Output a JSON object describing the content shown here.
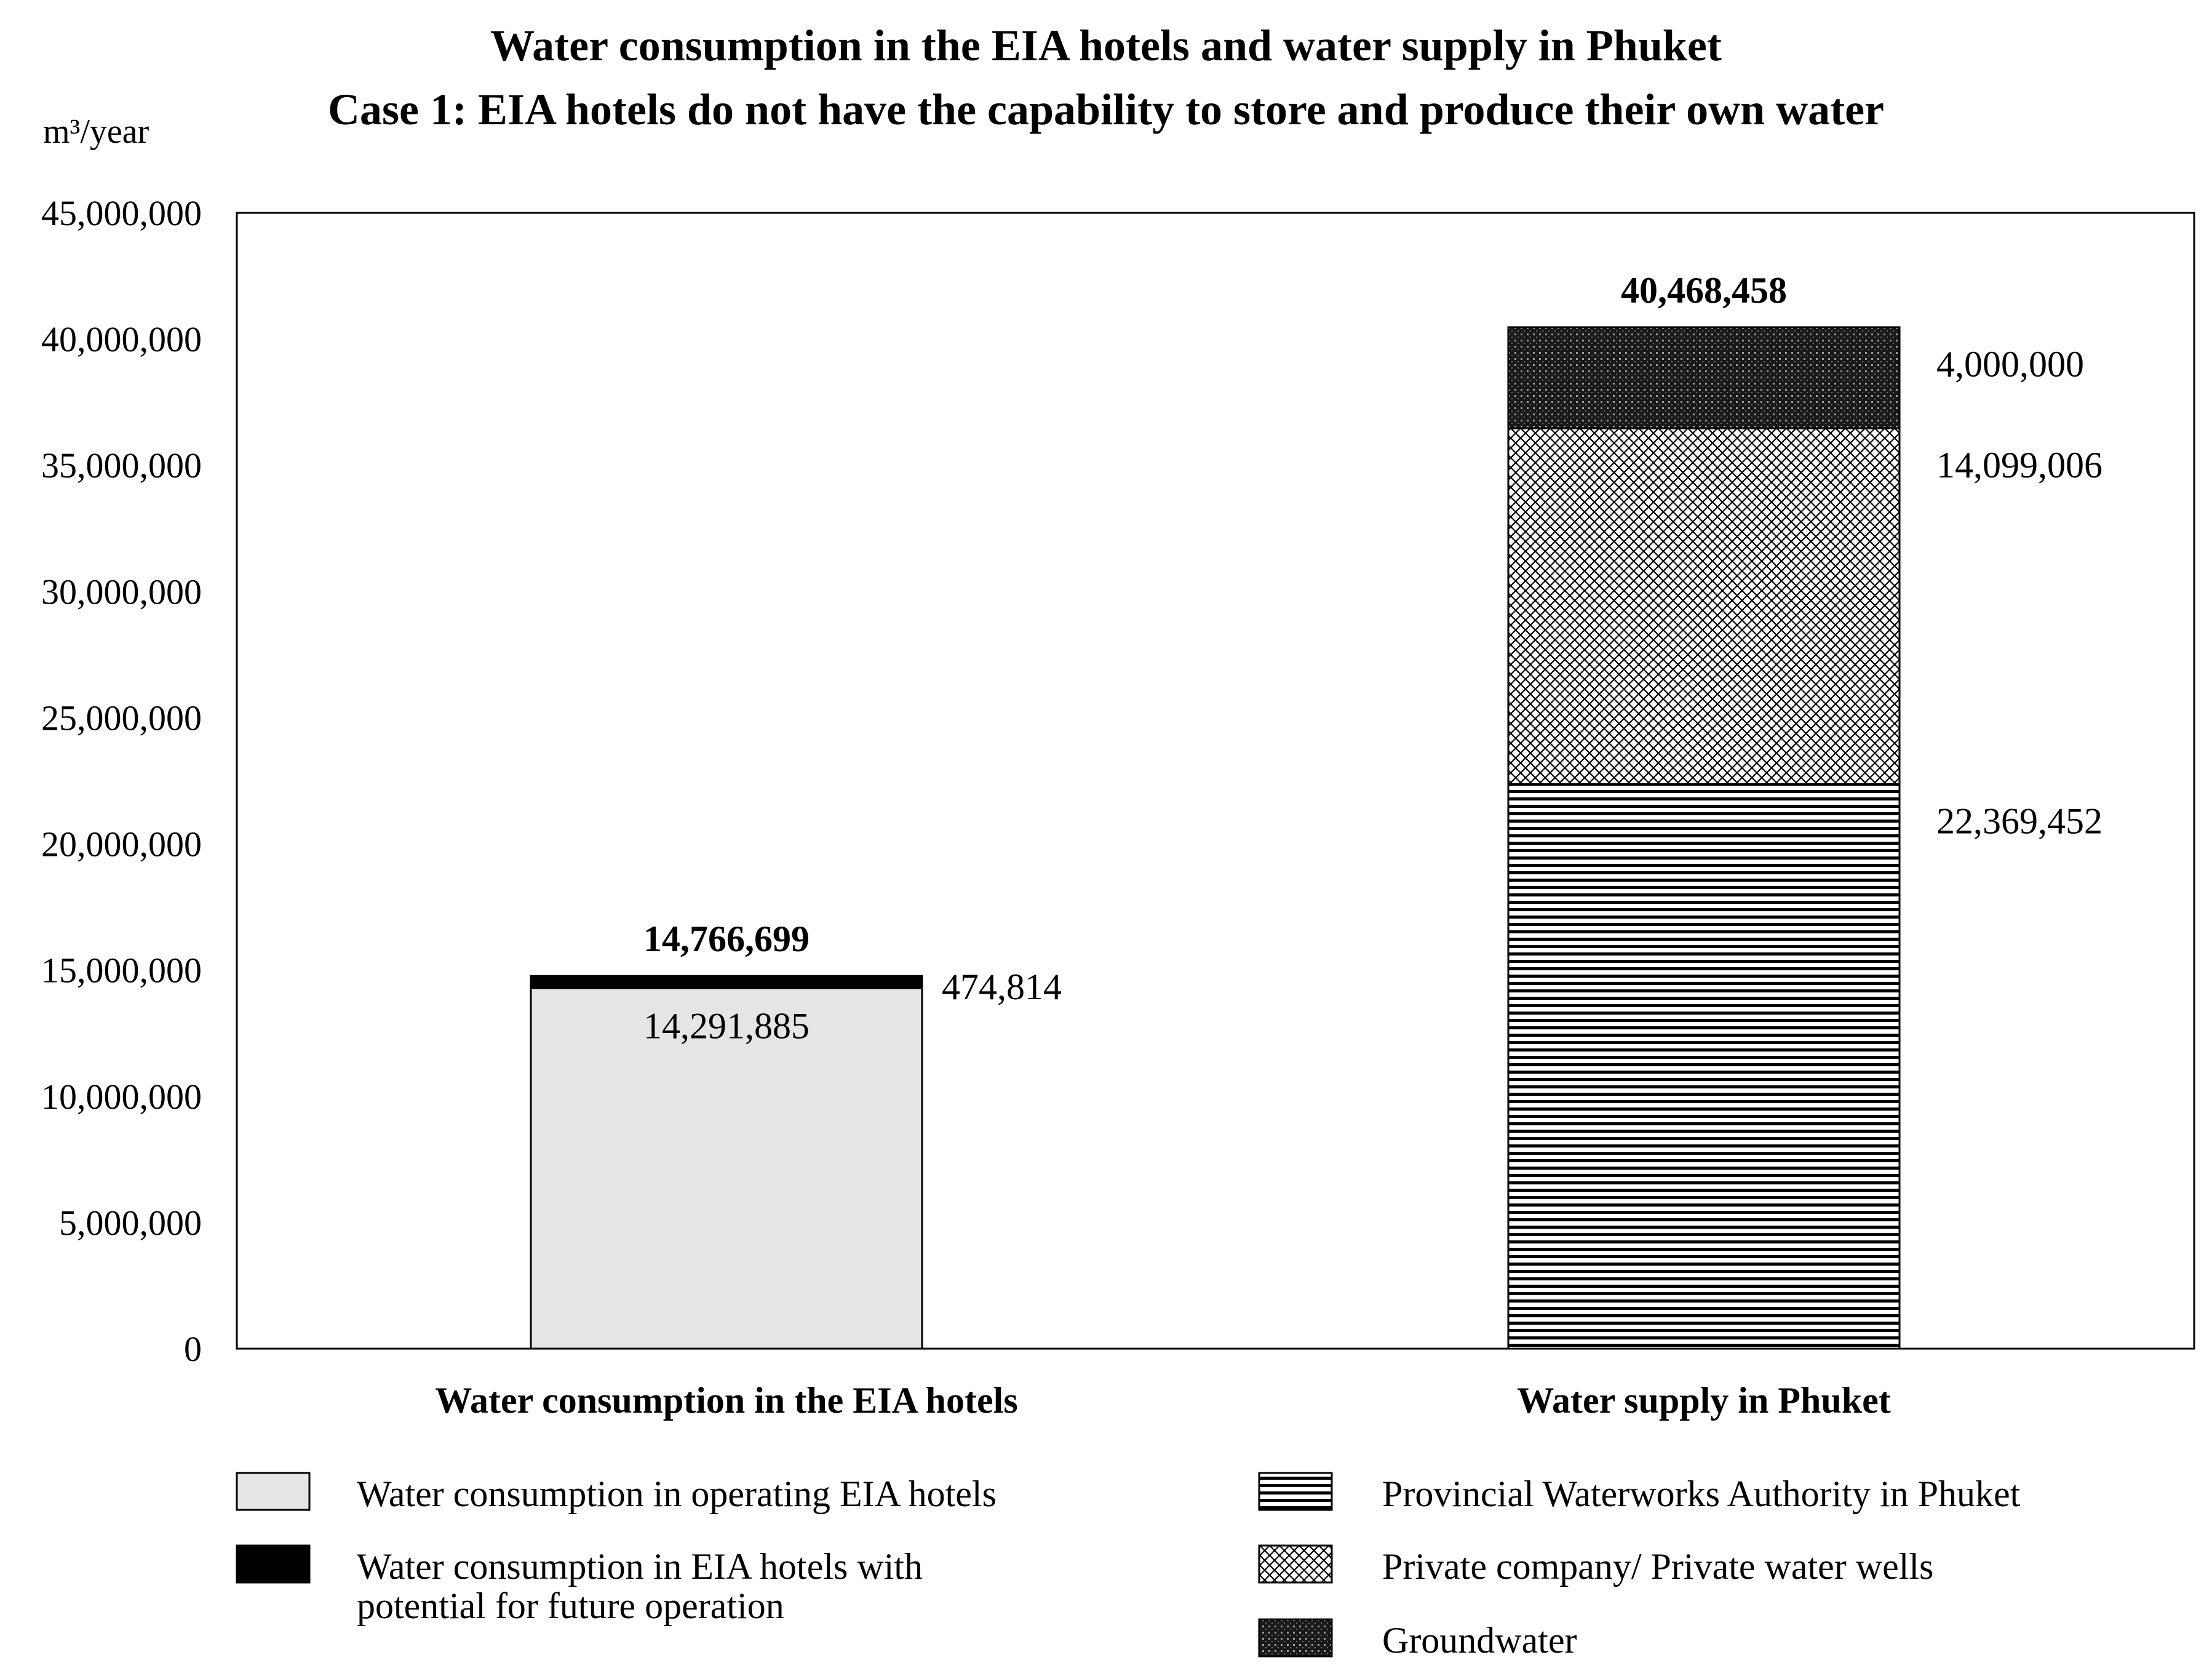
{
  "chart_data": {
    "type": "bar",
    "stacked": true,
    "title": "Water consumption in the EIA hotels and water supply in Phuket",
    "subtitle": "Case 1: EIA hotels do not have the capability to store and produce their own water",
    "ylabel": "m³/year",
    "ylim": [
      0,
      45000000
    ],
    "yticks": [
      "0",
      "5,000,000",
      "10,000,000",
      "15,000,000",
      "20,000,000",
      "25,000,000",
      "30,000,000",
      "35,000,000",
      "40,000,000",
      "45,000,000"
    ],
    "grid": false,
    "legend_position": "bottom",
    "categories": [
      "Water consumption in the EIA hotels",
      "Water supply in Phuket"
    ],
    "totals": [
      {
        "value": 14766699,
        "label": "14,766,699"
      },
      {
        "value": 40468458,
        "label": "40,468,458"
      }
    ],
    "series": [
      {
        "name": "Water consumption in operating EIA hotels",
        "fill": "light-gray",
        "color": "#e6e5e5",
        "values": [
          14291885,
          0
        ],
        "labels": [
          "14,291,885",
          ""
        ]
      },
      {
        "name": "Water consumption in EIA hotels with potential for future operation",
        "fill": "solid-black",
        "color": "#000000",
        "values": [
          474814,
          0
        ],
        "labels": [
          "474,814",
          ""
        ]
      },
      {
        "name": "Provincial Waterworks Authority in Phuket",
        "fill": "horizontal-lines",
        "color": "#000000",
        "values": [
          0,
          22369452
        ],
        "labels": [
          "",
          "22,369,452"
        ]
      },
      {
        "name": "Private company/ Private water wells",
        "fill": "crosshatch",
        "color": "#000000",
        "values": [
          0,
          14099006
        ],
        "labels": [
          "",
          "14,099,006"
        ]
      },
      {
        "name": "Groundwater",
        "fill": "dense-dots",
        "color": "#000000",
        "values": [
          0,
          4000000
        ],
        "labels": [
          "",
          "4,000,000"
        ]
      }
    ],
    "legend_lines": [
      [
        "Water consumption in operating EIA hotels"
      ],
      [
        "Water consumption in EIA hotels with",
        "potential for future operation"
      ],
      [
        "Provincial Waterworks Authority in Phuket"
      ],
      [
        "Private company/ Private water wells"
      ],
      [
        "Groundwater"
      ]
    ]
  }
}
